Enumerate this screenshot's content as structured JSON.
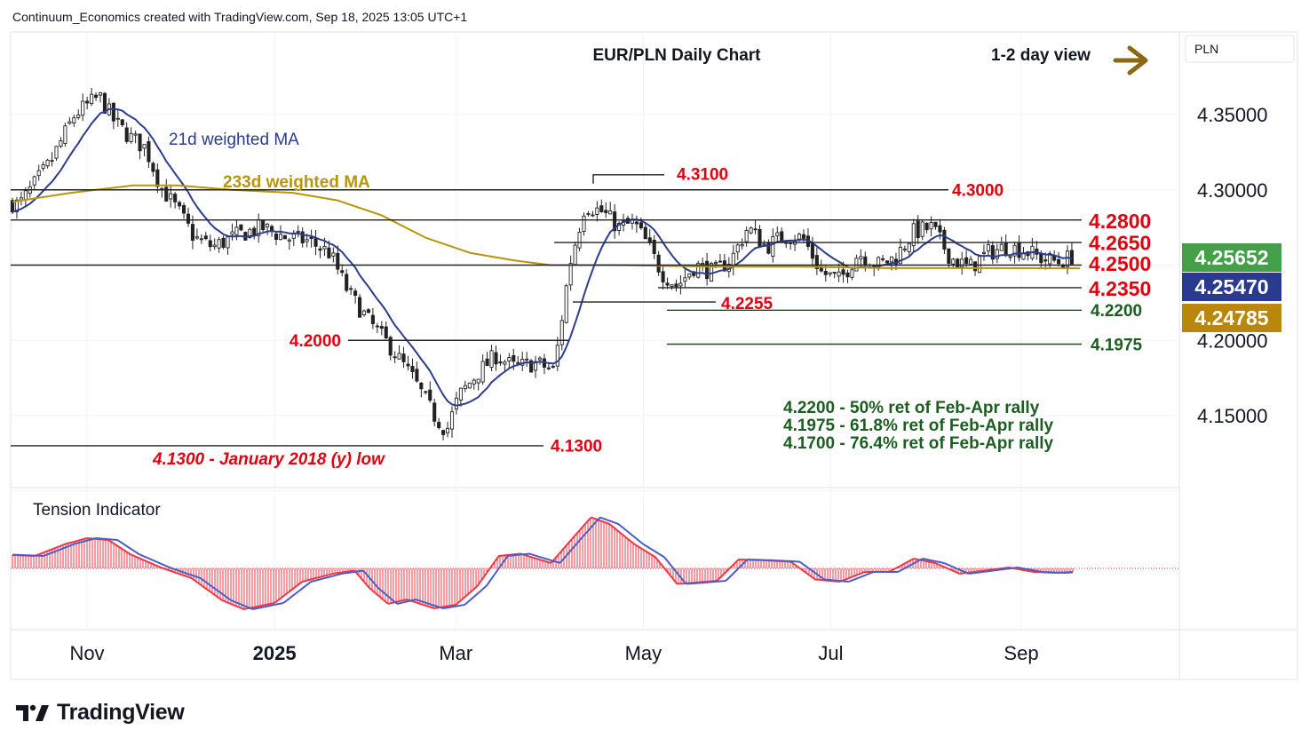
{
  "header": "Continuum_Economics created with TradingView.com, Sep 18, 2025 13:05 UTC+1",
  "brand": "TradingView",
  "currency_label": "PLN",
  "colors": {
    "up_candle": "#222222",
    "down_candle": "#222222",
    "ma21": "#2a3d8f",
    "ma233": "#b8960b",
    "level_red": "#e0000f",
    "level_green": "#1b5e20",
    "tag_green": "#43a047",
    "tag_navy": "#2a3a8c",
    "tag_gold": "#b8870b",
    "tension_line_blue": "#4a5dc9",
    "tension_line_red": "#f23645",
    "arrow": "#8b6914"
  },
  "chart_data": [
    {
      "type": "candlestick",
      "title": "EUR/PLN Daily Chart",
      "view_note": "1-2 day view",
      "x_ticks": [
        "Nov",
        "2025",
        "Mar",
        "May",
        "Jul",
        "Sep"
      ],
      "y_ticks": [
        "4.35000",
        "4.30000",
        "4.20000",
        "4.15000"
      ],
      "ylim": [
        4.105,
        4.405
      ],
      "series_labels": {
        "ma21": "21d weighted MA",
        "ma233": "233d weighted MA"
      },
      "price_tags": [
        {
          "value": "4.25652",
          "color": "green"
        },
        {
          "value": "4.25470",
          "color": "navy"
        },
        {
          "value": "4.24785",
          "color": "gold"
        }
      ],
      "levels": [
        {
          "value": 4.31,
          "label": "4.3100",
          "color": "red",
          "style": "resistance"
        },
        {
          "value": 4.3,
          "label": "4.3000",
          "color": "red",
          "style": "resistance"
        },
        {
          "value": 4.28,
          "label": "4.2800",
          "color": "red",
          "style": "resistance"
        },
        {
          "value": 4.265,
          "label": "4.2650",
          "color": "red",
          "style": "resistance"
        },
        {
          "value": 4.25,
          "label": "4.2500",
          "color": "red",
          "style": "support"
        },
        {
          "value": 4.235,
          "label": "4.2350",
          "color": "red",
          "style": "support"
        },
        {
          "value": 4.2255,
          "label": "4.2255",
          "color": "red",
          "style": "support"
        },
        {
          "value": 4.22,
          "label": "4.2200",
          "color": "green",
          "style": "retracement"
        },
        {
          "value": 4.2,
          "label": "4.2000",
          "color": "red",
          "style": "support"
        },
        {
          "value": 4.1975,
          "label": "4.1975",
          "color": "green",
          "style": "retracement"
        },
        {
          "value": 4.13,
          "label": "4.1300",
          "color": "red",
          "style": "support"
        }
      ],
      "annotations": [
        "4.1300 - January 2018 (y) low",
        "4.2200 - 50% ret of Feb-Apr rally",
        "4.1975 - 61.8% ret of Feb-Apr rally",
        "4.1700 - 76.4% ret of Feb-Apr rally"
      ],
      "close_path": [
        [
          "Oct 1",
          4.295
        ],
        [
          "Oct 10",
          4.29
        ],
        [
          "Oct 20",
          4.318
        ],
        [
          "Oct 28",
          4.35
        ],
        [
          "Nov 5",
          4.362
        ],
        [
          "Nov 10",
          4.345
        ],
        [
          "Nov 15",
          4.335
        ],
        [
          "Nov 20",
          4.328
        ],
        [
          "Nov 25",
          4.302
        ],
        [
          "Dec 1",
          4.285
        ],
        [
          "Dec 6",
          4.268
        ],
        [
          "Dec 12",
          4.262
        ],
        [
          "Dec 20",
          4.27
        ],
        [
          "Dec 28",
          4.275
        ],
        [
          "Jan 5",
          4.268
        ],
        [
          "Jan 12",
          4.266
        ],
        [
          "Jan 19",
          4.258
        ],
        [
          "Jan 25",
          4.232
        ],
        [
          "Feb 1",
          4.212
        ],
        [
          "Feb 8",
          4.195
        ],
        [
          "Feb 15",
          4.175
        ],
        [
          "Feb 22",
          4.15
        ],
        [
          "Feb 26",
          4.14
        ],
        [
          "Mar 2",
          4.163
        ],
        [
          "Mar 8",
          4.178
        ],
        [
          "Mar 14",
          4.19
        ],
        [
          "Mar 20",
          4.182
        ],
        [
          "Mar 27",
          4.185
        ],
        [
          "Apr 2",
          4.18
        ],
        [
          "Apr 7",
          4.25
        ],
        [
          "Apr 12",
          4.29
        ],
        [
          "Apr 18",
          4.285
        ],
        [
          "Apr 23",
          4.275
        ],
        [
          "Apr 28",
          4.278
        ],
        [
          "May 2",
          4.265
        ],
        [
          "May 7",
          4.245
        ],
        [
          "May 12",
          4.236
        ],
        [
          "May 18",
          4.25
        ],
        [
          "May 24",
          4.245
        ],
        [
          "May 30",
          4.255
        ],
        [
          "Jun 4",
          4.275
        ],
        [
          "Jun 10",
          4.262
        ],
        [
          "Jun 16",
          4.27
        ],
        [
          "Jun 22",
          4.268
        ],
        [
          "Jun 28",
          4.245
        ],
        [
          "Jul 4",
          4.24
        ],
        [
          "Jul 10",
          4.258
        ],
        [
          "Jul 16",
          4.25
        ],
        [
          "Jul 22",
          4.255
        ],
        [
          "Jul 28",
          4.272
        ],
        [
          "Aug 3",
          4.275
        ],
        [
          "Aug 9",
          4.255
        ],
        [
          "Aug 15",
          4.248
        ],
        [
          "Aug 21",
          4.258
        ],
        [
          "Aug 27",
          4.262
        ],
        [
          "Sep 2",
          4.26
        ],
        [
          "Sep 8",
          4.254
        ],
        [
          "Sep 14",
          4.252
        ],
        [
          "Sep 18",
          4.2565
        ]
      ]
    },
    {
      "type": "oscillator",
      "title": "Tension Indicator",
      "ylim": [
        -1,
        1
      ],
      "values": [
        [
          "Oct 1",
          0.32
        ],
        [
          "Oct 15",
          0.28
        ],
        [
          "Oct 25",
          0.55
        ],
        [
          "Nov 1",
          0.68
        ],
        [
          "Nov 8",
          0.64
        ],
        [
          "Nov 15",
          0.32
        ],
        [
          "Nov 25",
          0.02
        ],
        [
          "Dec 5",
          -0.22
        ],
        [
          "Dec 15",
          -0.72
        ],
        [
          "Dec 22",
          -0.92
        ],
        [
          "Jan 1",
          -0.78
        ],
        [
          "Jan 10",
          -0.3
        ],
        [
          "Jan 20",
          -0.12
        ],
        [
          "Jan 27",
          -0.05
        ],
        [
          "Feb 1",
          -0.45
        ],
        [
          "Feb 7",
          -0.8
        ],
        [
          "Feb 13",
          -0.7
        ],
        [
          "Feb 22",
          -0.9
        ],
        [
          "Mar 1",
          -0.82
        ],
        [
          "Mar 8",
          -0.4
        ],
        [
          "Mar 15",
          0.28
        ],
        [
          "Mar 22",
          0.33
        ],
        [
          "Apr 1",
          0.12
        ],
        [
          "Apr 7",
          0.6
        ],
        [
          "Apr 14",
          1.15
        ],
        [
          "Apr 20",
          1.0
        ],
        [
          "Apr 28",
          0.55
        ],
        [
          "May 5",
          0.25
        ],
        [
          "May 12",
          -0.35
        ],
        [
          "May 18",
          -0.32
        ],
        [
          "May 25",
          -0.28
        ],
        [
          "Jun 1",
          0.2
        ],
        [
          "Jun 10",
          0.18
        ],
        [
          "Jun 18",
          0.15
        ],
        [
          "Jun 26",
          -0.25
        ],
        [
          "Jul 4",
          -0.3
        ],
        [
          "Jul 12",
          -0.08
        ],
        [
          "Jul 20",
          -0.08
        ],
        [
          "Jul 28",
          0.22
        ],
        [
          "Aug 4",
          0.12
        ],
        [
          "Aug 12",
          -0.12
        ],
        [
          "Aug 20",
          -0.05
        ],
        [
          "Aug 28",
          0.02
        ],
        [
          "Sep 5",
          -0.08
        ],
        [
          "Sep 12",
          -0.1
        ],
        [
          "Sep 18",
          -0.08
        ]
      ]
    }
  ]
}
